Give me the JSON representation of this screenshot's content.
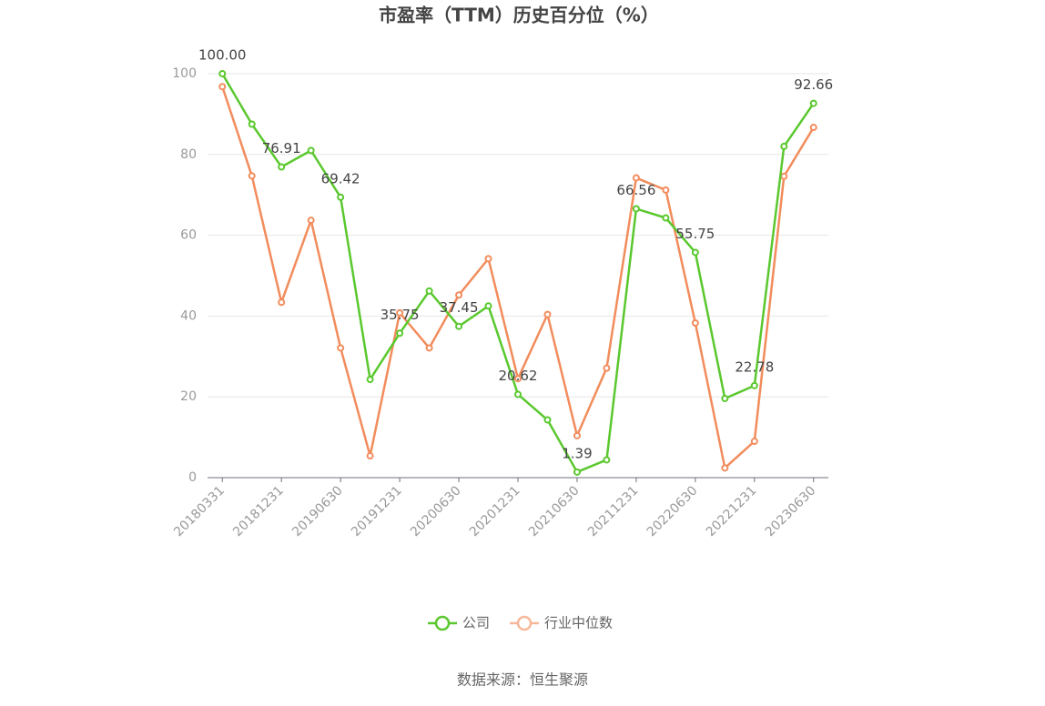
{
  "chart_data": {
    "type": "line",
    "title": "市盈率（TTM）历史百分位（%）",
    "source": "数据来源：恒生聚源",
    "categories": [
      "20180331",
      null,
      "20181231",
      null,
      "20190630",
      null,
      "20191231",
      null,
      "20200630",
      null,
      "20201231",
      null,
      "20210630",
      null,
      "20211231",
      null,
      "20220630",
      null,
      "20221231",
      null,
      "20230630"
    ],
    "series": [
      {
        "name": "公司",
        "color": "#5ac82e",
        "values": [
          100.0,
          87.5,
          76.91,
          81.0,
          69.42,
          24.3,
          35.75,
          46.2,
          37.45,
          42.5,
          20.62,
          14.3,
          1.39,
          4.4,
          66.56,
          64.3,
          55.75,
          19.6,
          22.78,
          82.0,
          92.66
        ],
        "value_labels": [
          "100.00",
          null,
          "76.91",
          null,
          "69.42",
          null,
          "35.75",
          null,
          "37.45",
          null,
          "20.62",
          null,
          "1.39",
          null,
          "66.56",
          null,
          "55.75",
          null,
          "22.78",
          null,
          "92.66"
        ]
      },
      {
        "name": "行业中位数",
        "color": "#f28c5c",
        "values": [
          96.8,
          74.7,
          43.4,
          63.7,
          32.1,
          5.4,
          40.8,
          32.1,
          45.2,
          54.2,
          24.5,
          40.4,
          10.4,
          27.1,
          74.2,
          71.2,
          38.3,
          2.4,
          9.0,
          74.6,
          86.7
        ]
      }
    ],
    "ylim": [
      0,
      100
    ],
    "yticks": [
      0,
      20,
      40,
      60,
      80,
      100
    ],
    "grid": true,
    "legend": "bottom"
  }
}
